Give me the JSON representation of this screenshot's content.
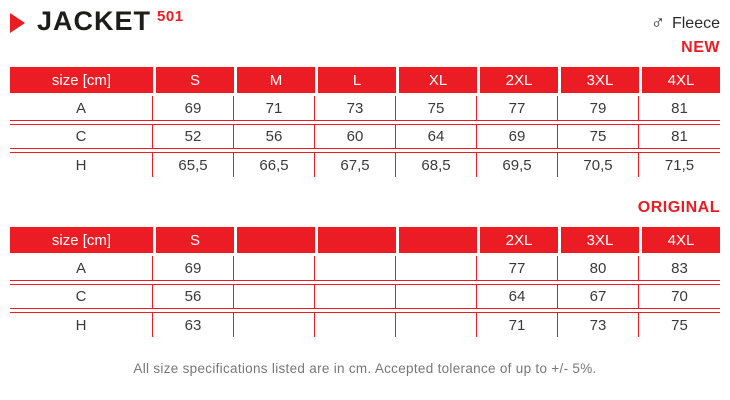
{
  "header": {
    "title": "JACKET",
    "model": "501",
    "material": "Fleece",
    "gender_icon": "male",
    "gender_glyph": "♂"
  },
  "colors": {
    "accent_red": "#EC1C24",
    "title_black": "#1d1d1b",
    "cell_text": "#3a3a3a",
    "note_gray": "#777777"
  },
  "tables": [
    {
      "label": "NEW",
      "columns": [
        "size [cm]",
        "S",
        "M",
        "L",
        "XL",
        "2XL",
        "3XL",
        "4XL"
      ],
      "rows": [
        {
          "label": "A",
          "values": [
            "69",
            "71",
            "73",
            "75",
            "77",
            "79",
            "81"
          ]
        },
        {
          "label": "C",
          "values": [
            "52",
            "56",
            "60",
            "64",
            "69",
            "75",
            "81"
          ]
        },
        {
          "label": "H",
          "values": [
            "65,5",
            "66,5",
            "67,5",
            "68,5",
            "69,5",
            "70,5",
            "71,5"
          ]
        }
      ]
    },
    {
      "label": "ORIGINAL",
      "columns": [
        "size [cm]",
        "S",
        "",
        "",
        "",
        "2XL",
        "3XL",
        "4XL"
      ],
      "rows": [
        {
          "label": "A",
          "values": [
            "69",
            "",
            "",
            "",
            "77",
            "80",
            "83"
          ]
        },
        {
          "label": "C",
          "values": [
            "56",
            "",
            "",
            "",
            "64",
            "67",
            "70"
          ]
        },
        {
          "label": "H",
          "values": [
            "63",
            "",
            "",
            "",
            "71",
            "73",
            "75"
          ]
        }
      ]
    }
  ],
  "footer": {
    "note": "All size specifications listed are in cm. Accepted tolerance of up to +/- 5%."
  }
}
